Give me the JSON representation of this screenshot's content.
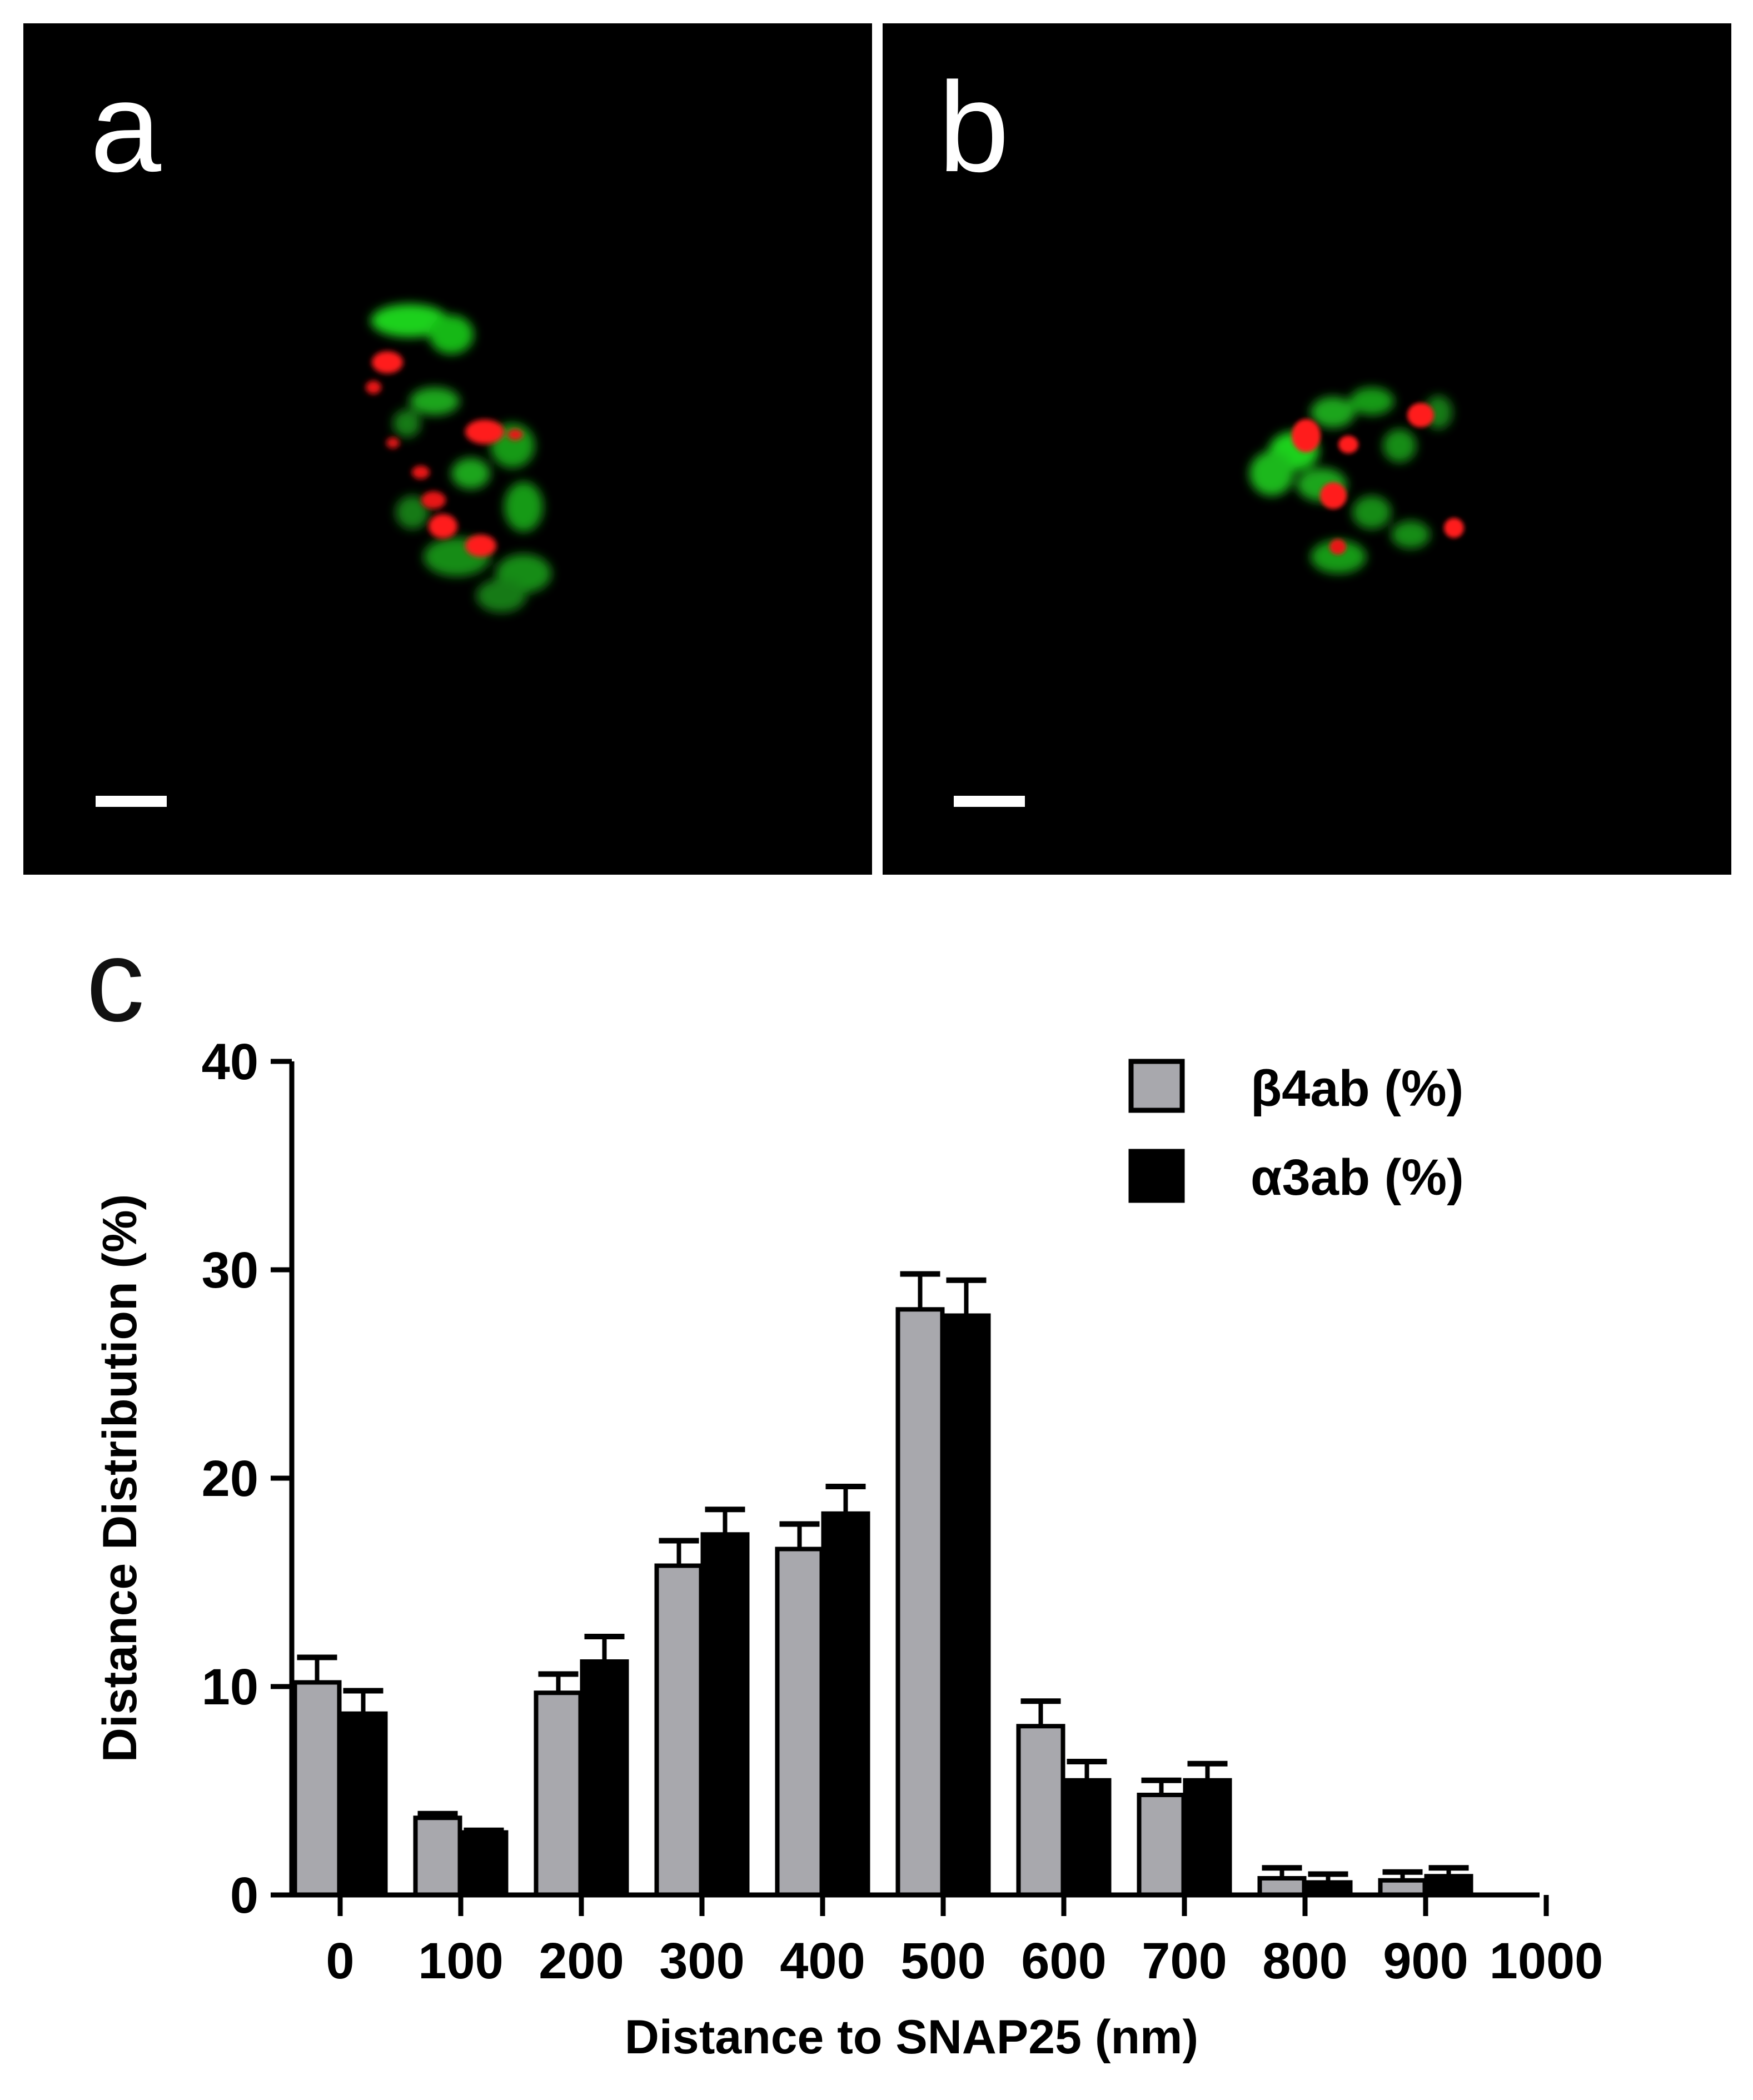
{
  "panels": {
    "a": {
      "label": "a"
    },
    "b": {
      "label": "b"
    },
    "c": {
      "label": "c"
    }
  },
  "colors": {
    "panel_background": "#000000",
    "green_stain": "#1fd11f",
    "red_stain": "#ff1a1a",
    "series_beta4": "#a8a8ad",
    "series_alpha3": "#000000"
  },
  "chart_data": {
    "type": "bar",
    "xlabel": "Distance to SNAP25 (nm)",
    "ylabel": "Distance Distribution (%)",
    "ylim": [
      0,
      40
    ],
    "yticks": [
      "0",
      "10",
      "20",
      "30",
      "40"
    ],
    "categories": [
      "0",
      "100",
      "200",
      "300",
      "400",
      "500",
      "600",
      "700",
      "800",
      "900",
      "1000"
    ],
    "legend_position": "top-right",
    "grid": false,
    "series": [
      {
        "name": "β4ab (%)",
        "color": "#a8a8ad",
        "values": [
          10.2,
          3.7,
          9.7,
          15.8,
          16.6,
          28.1,
          8.1,
          4.8,
          0.8,
          0.7,
          null
        ],
        "errors": [
          1.2,
          0.2,
          0.9,
          1.2,
          1.2,
          1.7,
          1.2,
          0.7,
          0.5,
          0.4,
          null
        ]
      },
      {
        "name": "α3ab (%)",
        "color": "#000000",
        "values": [
          8.7,
          3.0,
          11.2,
          17.3,
          18.3,
          27.8,
          5.5,
          5.5,
          0.6,
          0.9,
          null
        ],
        "errors": [
          1.1,
          0.1,
          1.2,
          1.2,
          1.3,
          1.7,
          0.9,
          0.8,
          0.4,
          0.4,
          null
        ]
      }
    ]
  }
}
